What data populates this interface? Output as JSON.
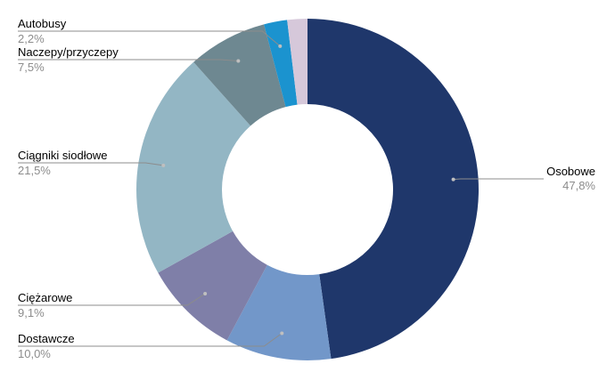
{
  "chart_data": {
    "type": "pie",
    "variant": "donut",
    "title": "",
    "slices": [
      {
        "label": "Osobowe",
        "value": 47.8,
        "display": "47,8%",
        "color": "#1f376b",
        "label_side": "right"
      },
      {
        "label": "Dostawcze",
        "value": 10.0,
        "display": "10,0%",
        "color": "#7297c9",
        "label_side": "left"
      },
      {
        "label": "Ciężarowe",
        "value": 9.1,
        "display": "9,1%",
        "color": "#7f7fa8",
        "label_side": "left"
      },
      {
        "label": "Ciągniki siodłowe",
        "value": 21.5,
        "display": "21,5%",
        "color": "#93b6c4",
        "label_side": "left"
      },
      {
        "label": "Naczepy/przyczepy",
        "value": 7.5,
        "display": "7,5%",
        "color": "#6e8891",
        "label_side": "left"
      },
      {
        "label": "Autobusy",
        "value": 2.2,
        "display": "2,2%",
        "color": "#1b93cf",
        "label_side": "left"
      },
      {
        "label": "",
        "value": 1.9,
        "display": "",
        "color": "#d6c8da",
        "label_side": "none"
      }
    ],
    "legend": "none",
    "grid": false
  }
}
